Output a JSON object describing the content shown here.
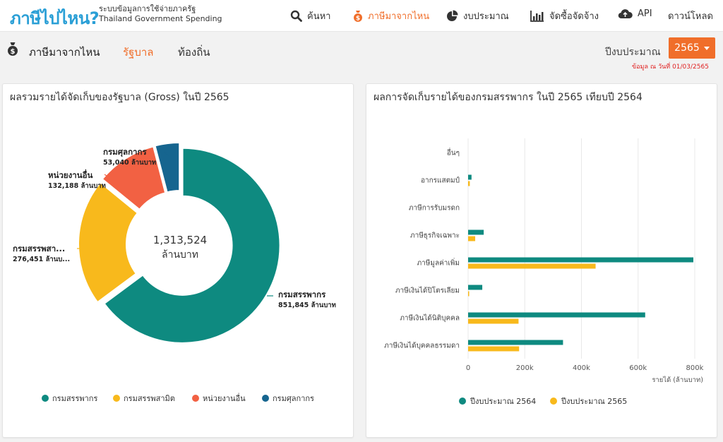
{
  "header": {
    "logo": "ภาษีไปไหน?",
    "subtitle_th": "ระบบข้อมูลการใช้จ่ายภาครัฐ",
    "subtitle_en": "Thailand Government Spending",
    "nav": [
      {
        "label": "ค้นหา",
        "icon": "search-icon"
      },
      {
        "label": "ภาษีมาจากไหน",
        "icon": "money-bag-icon",
        "active": true
      },
      {
        "label": "งบประมาณ",
        "icon": "pie-chart-icon"
      },
      {
        "label": "จัดซื้อจัดจ้าง",
        "icon": "bar-chart-icon"
      },
      {
        "label": "API",
        "icon": "cloud-icon"
      },
      {
        "label": "ดาวน์โหลด",
        "icon": ""
      }
    ]
  },
  "subnav": {
    "title": "ภาษีมาจากไหน",
    "tabs": [
      {
        "label": "รัฐบาล",
        "active": true
      },
      {
        "label": "ท้องถิ่น",
        "active": false
      }
    ],
    "year_label": "ปีงบประมาณ",
    "year_value": "2565",
    "as_of": "ข้อมูล ณ วันที่ 01/03/2565"
  },
  "colors": {
    "accent": "#f06e2a",
    "teal": "#0e8a80",
    "yellow": "#f8b91c",
    "red": "#f26143",
    "blue": "#16658f"
  },
  "chart_data": [
    {
      "type": "pie",
      "title": "ผลรวมรายได้จัดเก็บของรัฐบาล (Gross) ในปี 2565",
      "center_value": "1,313,524",
      "center_unit": "ล้านบาท",
      "slices": [
        {
          "name": "กรมสรรพากร",
          "value": 851845,
          "label": "กรมสรรพากร",
          "value_label": "851,845 ล้านบาท",
          "color": "#0e8a80"
        },
        {
          "name": "กรมสรรพสามิต",
          "value": 276451,
          "label": "กรมสรรพสา...",
          "value_label": "276,451 ล้านบ...",
          "color": "#f8b91c"
        },
        {
          "name": "หน่วยงานอื่น",
          "value": 132188,
          "label": "หน่วยงานอื่น",
          "value_label": "132,188 ล้านบาท",
          "color": "#f26143"
        },
        {
          "name": "กรมศุลกากร",
          "value": 53040,
          "label": "กรมศุลกากร",
          "value_label": "53,040 ล้านบาท",
          "color": "#16658f"
        }
      ],
      "legend_position": "bottom"
    },
    {
      "type": "bar",
      "orientation": "horizontal",
      "title": "ผลการจัดเก็บรายได้ของกรมสรรพากร ในปี 2565 เทียบปี 2564",
      "categories": [
        "อื่นๆ",
        "อากรแสตมป์",
        "ภาษีการรับมรดก",
        "ภาษีธุรกิจเฉพาะ",
        "ภาษีมูลค่าเพิ่ม",
        "ภาษีเงินได้ปิโตรเลียม",
        "ภาษีเงินได้นิติบุคคล",
        "ภาษีเงินได้บุคคลธรรมดา"
      ],
      "series": [
        {
          "name": "ปีงบประมาณ 2564",
          "color": "#0e8a80",
          "values": [
            0,
            12000,
            0,
            55000,
            795000,
            50000,
            625000,
            335000
          ]
        },
        {
          "name": "ปีงบประมาณ 2565",
          "color": "#f8b91c",
          "values": [
            0,
            6000,
            0,
            25000,
            450000,
            2000,
            178000,
            180000
          ]
        }
      ],
      "xlim": [
        0,
        800000
      ],
      "ticks": [
        "0",
        "200k",
        "400k",
        "600k",
        "800k"
      ],
      "xlabel": "รายได้ (ล้านบาท)",
      "grid": true,
      "legend_position": "bottom"
    }
  ]
}
